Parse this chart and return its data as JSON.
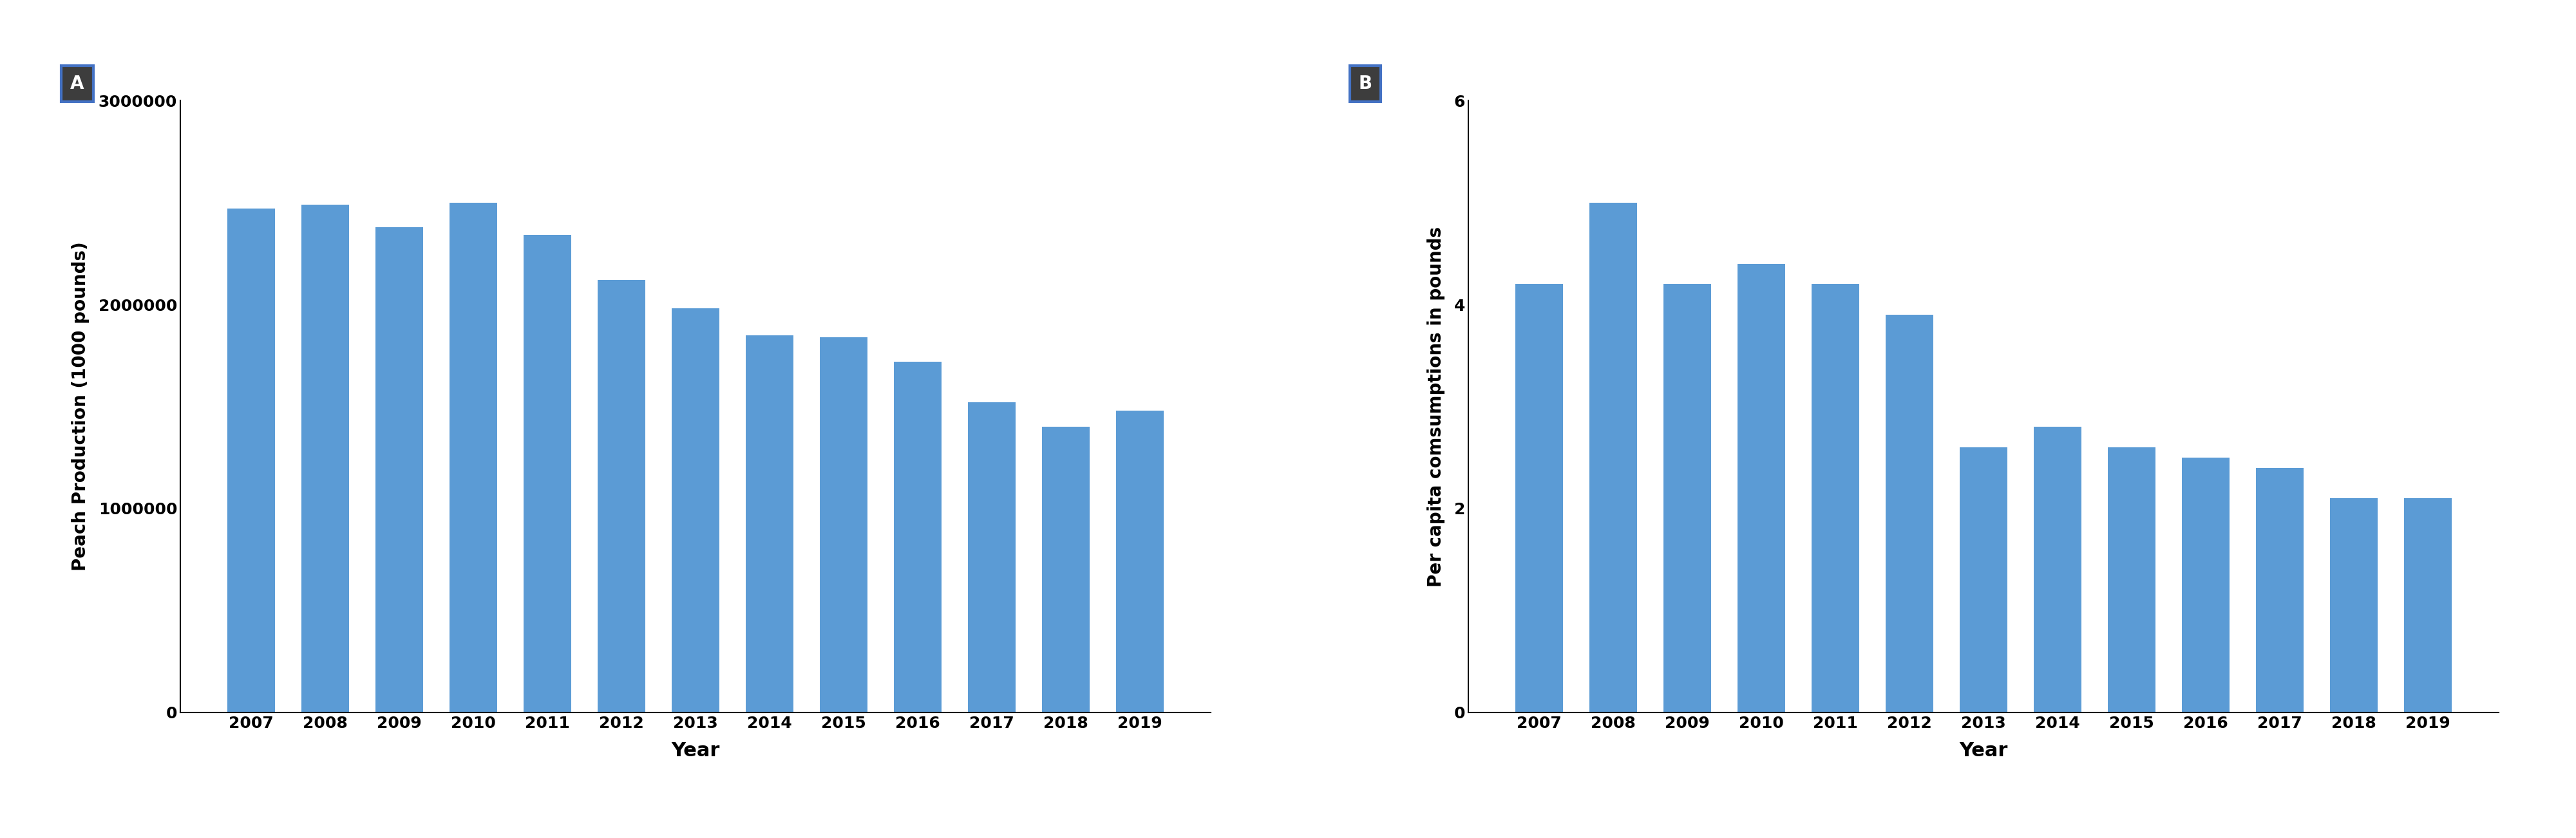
{
  "panel_a": {
    "years": [
      2007,
      2008,
      2009,
      2010,
      2011,
      2012,
      2013,
      2014,
      2015,
      2016,
      2017,
      2018,
      2019
    ],
    "values": [
      2470000,
      2490000,
      2380000,
      2500000,
      2340000,
      2120000,
      1980000,
      1850000,
      1840000,
      1720000,
      1520000,
      1400000,
      1480000
    ],
    "ylabel": "Peach Production (1000 pounds)",
    "xlabel": "Year",
    "ylim": [
      0,
      3000000
    ],
    "yticks": [
      0,
      1000000,
      2000000,
      3000000
    ],
    "ytick_labels": [
      "0",
      "1000000",
      "2000000",
      "3000000"
    ],
    "label": "A"
  },
  "panel_b": {
    "years": [
      2007,
      2008,
      2009,
      2010,
      2011,
      2012,
      2013,
      2014,
      2015,
      2016,
      2017,
      2018,
      2019
    ],
    "values": [
      4.2,
      5.0,
      4.2,
      4.4,
      4.2,
      3.9,
      2.6,
      2.8,
      2.6,
      2.5,
      2.4,
      2.1,
      2.1
    ],
    "ylabel": "Per capita comsumptions in pounds",
    "xlabel": "Year",
    "ylim": [
      0,
      6
    ],
    "yticks": [
      0,
      2,
      4,
      6
    ],
    "ytick_labels": [
      "0",
      "2",
      "4",
      "6"
    ],
    "label": "B"
  },
  "bar_color": "#5B9BD5",
  "label_box_facecolor": "#3D3D3D",
  "label_box_edgecolor": "#4472C4",
  "label_text_color": "#FFFFFF",
  "label_fontsize": 20,
  "tick_fontsize": 18,
  "axis_label_fontsize": 20,
  "xlabel_fontsize": 22,
  "bar_width": 0.65
}
